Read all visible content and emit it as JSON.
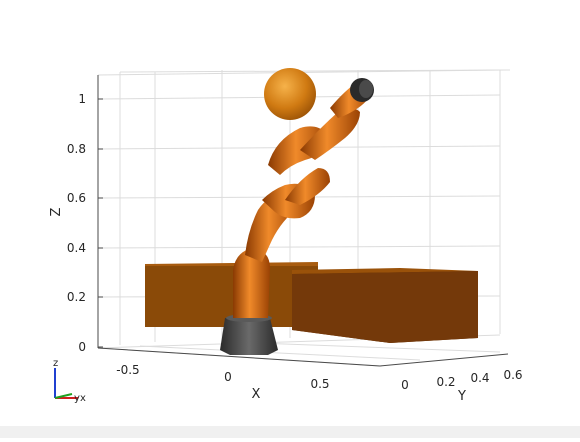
{
  "figure": {
    "axes": {
      "z_label": "Z",
      "x_label": "X",
      "y_label": "Y",
      "z_ticks": [
        "0",
        "0.2",
        "0.4",
        "0.6",
        "0.8",
        "1"
      ],
      "x_ticks": [
        "-0.5",
        "0",
        "0.5"
      ],
      "y_ticks": [
        "0",
        "0.2",
        "0.4",
        "0.6"
      ]
    },
    "triad": {
      "z": "z",
      "y": "y",
      "x": "x"
    },
    "colors": {
      "robot_orange": "#d4650a",
      "box_brown": "#8a4a08",
      "base_gray": "#3a3a3a",
      "sphere_orange": "#d08010"
    }
  }
}
